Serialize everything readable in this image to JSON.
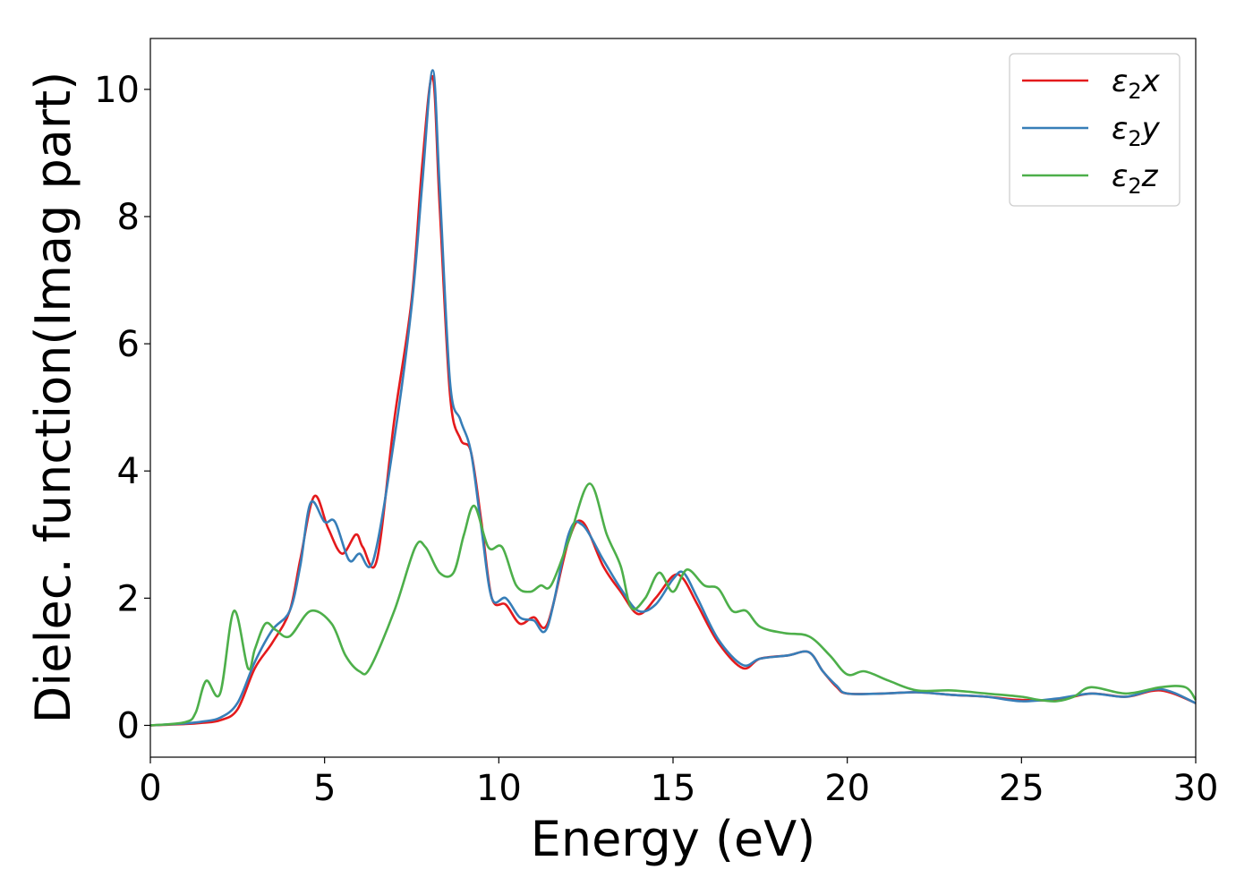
{
  "chart_data": {
    "type": "line",
    "xlabel": "Energy (eV)",
    "ylabel": "Dielec. function(Imag part)",
    "xlim": [
      0,
      30
    ],
    "ylim": [
      -0.5,
      10.8
    ],
    "xticks": [
      0,
      5,
      10,
      15,
      20,
      25,
      30
    ],
    "yticks": [
      0,
      2,
      4,
      6,
      8,
      10
    ],
    "grid": false,
    "legend_position": "top-right",
    "series": [
      {
        "name": "ε₂x",
        "legend_base": "ε",
        "legend_sub": "2",
        "legend_suffix": "x",
        "color": "#e41a1c",
        "x": [
          0,
          1,
          1.5,
          2,
          2.5,
          3,
          3.5,
          4,
          4.3,
          4.7,
          5.1,
          5.5,
          5.9,
          6.1,
          6.5,
          7,
          7.5,
          7.8,
          8.1,
          8.3,
          8.6,
          8.9,
          9.2,
          9.5,
          9.8,
          10.2,
          10.6,
          11,
          11.4,
          12,
          12.4,
          13,
          13.5,
          14,
          14.5,
          15,
          15.3,
          15.7,
          16.3,
          17,
          17.5,
          18.3,
          18.9,
          19.3,
          19.7,
          20,
          21,
          22,
          23,
          24,
          25,
          26,
          27,
          28,
          29,
          30
        ],
        "y": [
          0,
          0.02,
          0.04,
          0.08,
          0.25,
          0.9,
          1.3,
          1.8,
          2.6,
          3.6,
          3.1,
          2.7,
          3.0,
          2.8,
          2.6,
          4.8,
          6.7,
          8.8,
          10.2,
          8.2,
          5.2,
          4.5,
          4.3,
          3.2,
          2.0,
          1.9,
          1.6,
          1.7,
          1.6,
          2.9,
          3.2,
          2.5,
          2.1,
          1.75,
          2.0,
          2.35,
          2.3,
          1.9,
          1.3,
          0.9,
          1.05,
          1.1,
          1.15,
          0.85,
          0.6,
          0.5,
          0.5,
          0.52,
          0.48,
          0.45,
          0.4,
          0.4,
          0.5,
          0.45,
          0.55,
          0.35
        ]
      },
      {
        "name": "ε₂y",
        "legend_base": "ε",
        "legend_sub": "2",
        "legend_suffix": "y",
        "color": "#377eb8",
        "x": [
          0,
          1,
          1.5,
          2,
          2.5,
          3,
          3.5,
          4,
          4.3,
          4.6,
          5.0,
          5.3,
          5.7,
          6.0,
          6.4,
          7,
          7.5,
          7.8,
          8.1,
          8.3,
          8.6,
          8.9,
          9.2,
          9.5,
          9.8,
          10.2,
          10.6,
          11,
          11.4,
          12,
          12.4,
          13,
          13.5,
          14,
          14.5,
          15,
          15.3,
          15.7,
          16.3,
          17,
          17.5,
          18.3,
          18.9,
          19.3,
          19.7,
          20,
          21,
          22,
          23,
          24,
          25,
          26,
          27,
          28,
          29,
          30
        ],
        "y": [
          0,
          0.03,
          0.06,
          0.12,
          0.35,
          1.0,
          1.5,
          1.8,
          2.5,
          3.5,
          3.2,
          3.2,
          2.6,
          2.7,
          2.6,
          4.5,
          6.6,
          8.5,
          10.3,
          8.5,
          5.4,
          4.8,
          4.3,
          3.1,
          2.0,
          2.0,
          1.7,
          1.65,
          1.55,
          3.0,
          3.15,
          2.6,
          2.15,
          1.8,
          1.9,
          2.3,
          2.4,
          2.0,
          1.35,
          0.95,
          1.05,
          1.1,
          1.15,
          0.85,
          0.62,
          0.5,
          0.5,
          0.52,
          0.48,
          0.45,
          0.38,
          0.42,
          0.5,
          0.45,
          0.57,
          0.35
        ]
      },
      {
        "name": "ε₂z",
        "legend_base": "ε",
        "legend_sub": "2",
        "legend_suffix": "z",
        "color": "#4daf4a",
        "x": [
          0,
          1,
          1.3,
          1.6,
          2.0,
          2.4,
          2.8,
          3.0,
          3.3,
          3.6,
          4.0,
          4.6,
          5.2,
          5.6,
          6.0,
          6.3,
          7.0,
          7.6,
          7.9,
          8.3,
          8.7,
          9.0,
          9.3,
          9.7,
          10.1,
          10.5,
          10.9,
          11.2,
          11.5,
          12.0,
          12.6,
          13.1,
          13.5,
          13.8,
          14.2,
          14.6,
          15.0,
          15.4,
          15.9,
          16.3,
          16.7,
          17.1,
          17.5,
          18.2,
          18.9,
          19.5,
          20.0,
          20.5,
          21.2,
          22,
          23,
          24,
          25,
          25.5,
          26,
          26.5,
          27,
          28,
          29,
          29.7,
          30
        ],
        "y": [
          0,
          0.05,
          0.2,
          0.7,
          0.5,
          1.8,
          0.9,
          1.2,
          1.6,
          1.5,
          1.4,
          1.8,
          1.6,
          1.1,
          0.85,
          0.9,
          1.8,
          2.8,
          2.8,
          2.4,
          2.4,
          3.0,
          3.45,
          2.8,
          2.8,
          2.2,
          2.1,
          2.2,
          2.2,
          2.9,
          3.8,
          3.0,
          2.5,
          1.85,
          2.0,
          2.4,
          2.1,
          2.45,
          2.2,
          2.15,
          1.8,
          1.8,
          1.55,
          1.45,
          1.4,
          1.1,
          0.8,
          0.85,
          0.7,
          0.55,
          0.55,
          0.5,
          0.45,
          0.4,
          0.38,
          0.45,
          0.6,
          0.5,
          0.6,
          0.6,
          0.4
        ]
      }
    ]
  }
}
